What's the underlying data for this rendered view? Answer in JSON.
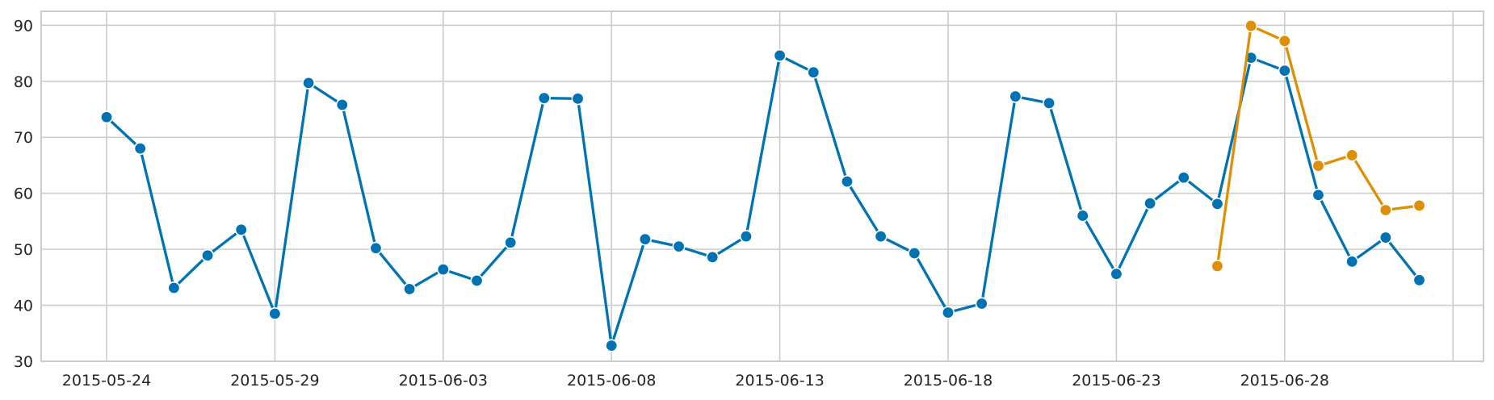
{
  "chart_data": {
    "type": "line",
    "title": "",
    "xlabel": "",
    "ylabel": "",
    "x_start": "2015-05-24",
    "xlim": [
      "2015-05-22",
      "2015-07-03"
    ],
    "ylim": [
      30,
      92.5
    ],
    "x_ticks": [
      "2015-05-24",
      "2015-05-29",
      "2015-06-03",
      "2015-06-08",
      "2015-06-13",
      "2015-06-18",
      "2015-06-23",
      "2015-06-28",
      "2015-07-03"
    ],
    "x_tick_labels": [
      "2015-05-24",
      "2015-05-29",
      "2015-06-03",
      "2015-06-08",
      "2015-06-13",
      "2015-06-18",
      "2015-06-23",
      "2015-06-28",
      ""
    ],
    "y_ticks": [
      30,
      40,
      50,
      60,
      70,
      80,
      90
    ],
    "y_tick_labels": [
      "30",
      "40",
      "50",
      "60",
      "70",
      "80",
      "90"
    ],
    "grid": true,
    "legend": "none",
    "marker": "circle",
    "series": [
      {
        "color": "#0173b2",
        "x": [
          "2015-05-24",
          "2015-05-25",
          "2015-05-26",
          "2015-05-27",
          "2015-05-28",
          "2015-05-29",
          "2015-05-30",
          "2015-05-31",
          "2015-06-01",
          "2015-06-02",
          "2015-06-03",
          "2015-06-04",
          "2015-06-05",
          "2015-06-06",
          "2015-06-07",
          "2015-06-08",
          "2015-06-09",
          "2015-06-10",
          "2015-06-11",
          "2015-06-12",
          "2015-06-13",
          "2015-06-14",
          "2015-06-15",
          "2015-06-16",
          "2015-06-17",
          "2015-06-18",
          "2015-06-19",
          "2015-06-20",
          "2015-06-21",
          "2015-06-22",
          "2015-06-23",
          "2015-06-24",
          "2015-06-25",
          "2015-06-26",
          "2015-06-27",
          "2015-06-28",
          "2015-06-29",
          "2015-06-30",
          "2015-07-01",
          "2015-07-02"
        ],
        "values": [
          73.6,
          68.0,
          43.1,
          48.9,
          53.5,
          38.5,
          79.7,
          75.8,
          50.2,
          42.9,
          46.4,
          44.4,
          51.2,
          77.0,
          76.9,
          32.8,
          51.8,
          50.5,
          48.6,
          52.3,
          84.6,
          81.6,
          62.1,
          52.3,
          49.3,
          38.7,
          40.3,
          77.3,
          76.1,
          56.0,
          45.6,
          58.2,
          62.8,
          58.1,
          84.2,
          81.9,
          59.7,
          47.8,
          52.1,
          44.5
        ]
      },
      {
        "color": "#de8f05",
        "x": [
          "2015-06-26",
          "2015-06-27",
          "2015-06-28",
          "2015-06-29",
          "2015-06-30",
          "2015-07-01",
          "2015-07-02"
        ],
        "values": [
          47.0,
          89.9,
          87.2,
          64.9,
          66.8,
          57.0,
          57.8
        ]
      }
    ]
  }
}
